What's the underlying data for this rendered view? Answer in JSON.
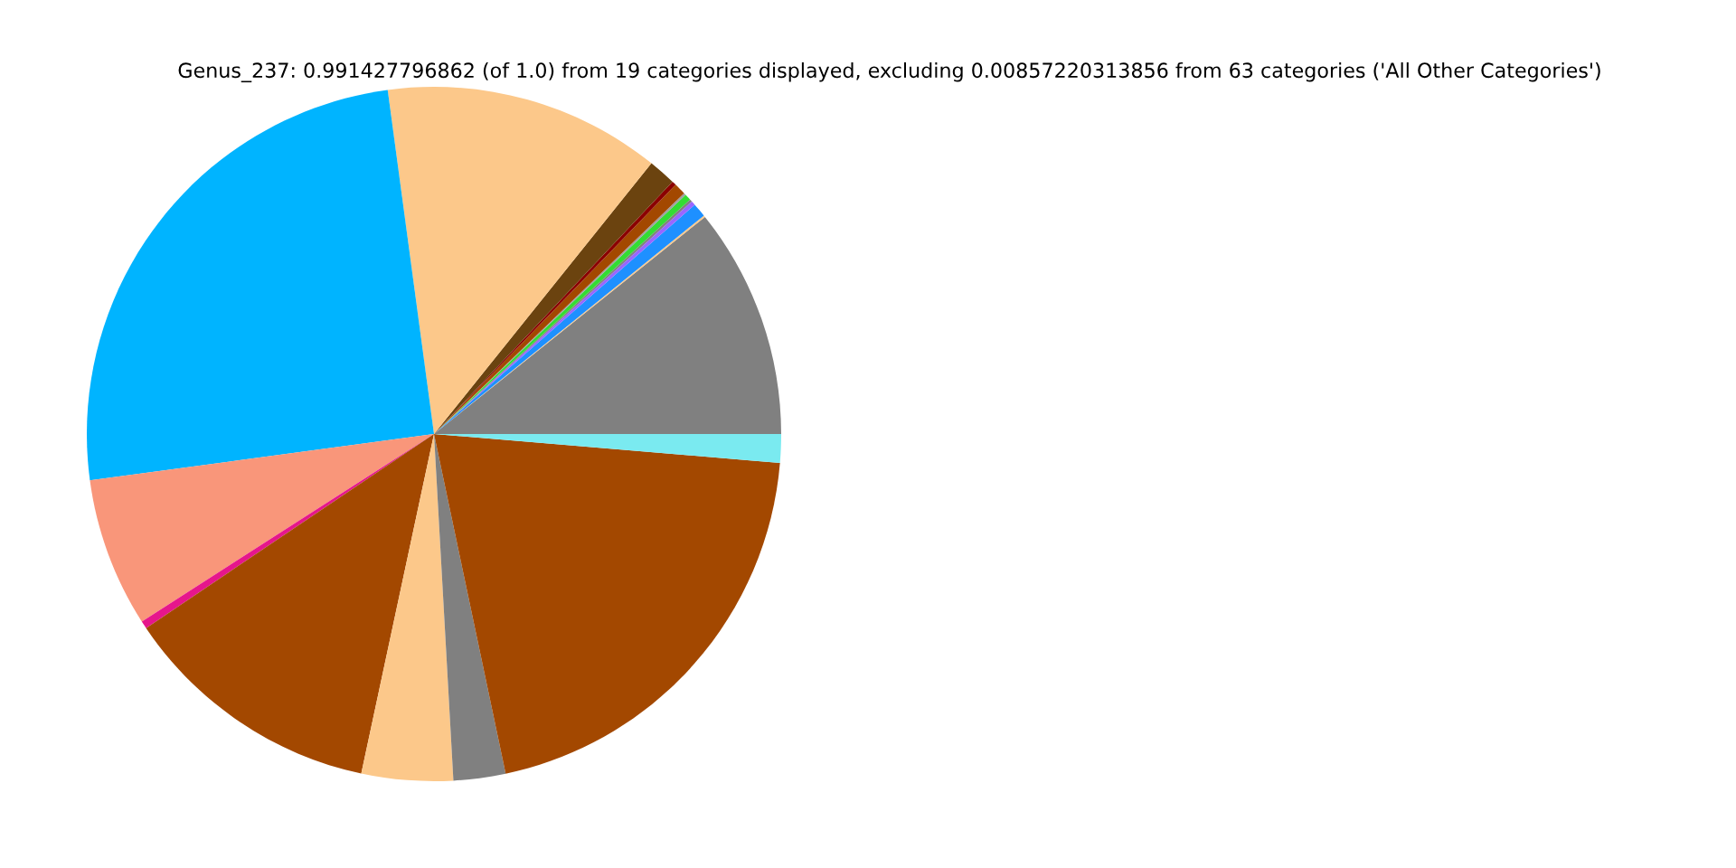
{
  "chart_data": {
    "type": "pie",
    "title": "Genus_237: 0.991427796862 (of 1.0) from 19 categories displayed, excluding 0.00857220313856 from 63 categories ('All Other Categories')",
    "categories": [
      null,
      null,
      null,
      null,
      null,
      null,
      null,
      null,
      null,
      null,
      null,
      null,
      null,
      null,
      null,
      null,
      null,
      null,
      null
    ],
    "values": [
      10.75,
      0.08,
      0.65,
      0.2,
      0.12,
      0.3,
      0.1,
      0.55,
      0.2,
      1.28,
      12.9,
      25.0,
      6.95,
      0.36,
      12.2,
      4.25,
      2.42,
      20.36,
      1.33
    ],
    "colors": [
      "#808080",
      "#fcc88a",
      "#1e90ff",
      "#9966ff",
      "#808080",
      "#33dd33",
      "#a0a0a0",
      "#a34800",
      "#8b0000",
      "#6b430f",
      "#fcc88a",
      "#00b4ff",
      "#f9967a",
      "#e6168c",
      "#a34800",
      "#fcc88a",
      "#808080",
      "#a34800",
      "#7aeaf0"
    ],
    "legend": false
  }
}
